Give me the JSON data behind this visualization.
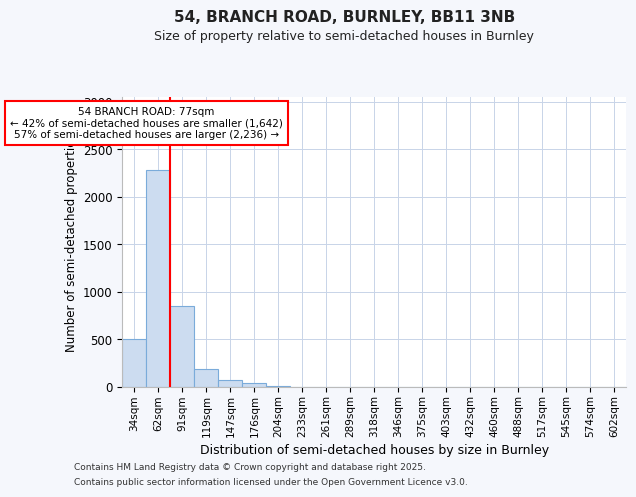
{
  "title1": "54, BRANCH ROAD, BURNLEY, BB11 3NB",
  "title2": "Size of property relative to semi-detached houses in Burnley",
  "xlabel": "Distribution of semi-detached houses by size in Burnley",
  "ylabel": "Number of semi-detached properties",
  "categories": [
    "34sqm",
    "62sqm",
    "91sqm",
    "119sqm",
    "147sqm",
    "176sqm",
    "204sqm",
    "233sqm",
    "261sqm",
    "289sqm",
    "318sqm",
    "346sqm",
    "375sqm",
    "403sqm",
    "432sqm",
    "460sqm",
    "488sqm",
    "517sqm",
    "545sqm",
    "574sqm",
    "602sqm"
  ],
  "bar_heights": [
    500,
    2280,
    850,
    185,
    75,
    40,
    15,
    5,
    2,
    1,
    0.5,
    0,
    0,
    0,
    0,
    0,
    0,
    0,
    0,
    0,
    0
  ],
  "bar_color": "#ccdcf0",
  "bar_edge_color": "#7aabda",
  "red_line_x": 1.5,
  "annotation_title": "54 BRANCH ROAD: 77sqm",
  "annotation_line1": "← 42% of semi-detached houses are smaller (1,642)",
  "annotation_line2": "57% of semi-detached houses are larger (2,236) →",
  "ylim": [
    0,
    3050
  ],
  "yticks": [
    0,
    500,
    1000,
    1500,
    2000,
    2500,
    3000
  ],
  "footnote1": "Contains HM Land Registry data © Crown copyright and database right 2025.",
  "footnote2": "Contains public sector information licensed under the Open Government Licence v3.0.",
  "bg_color": "#f5f7fc",
  "plot_bg_color": "#ffffff"
}
